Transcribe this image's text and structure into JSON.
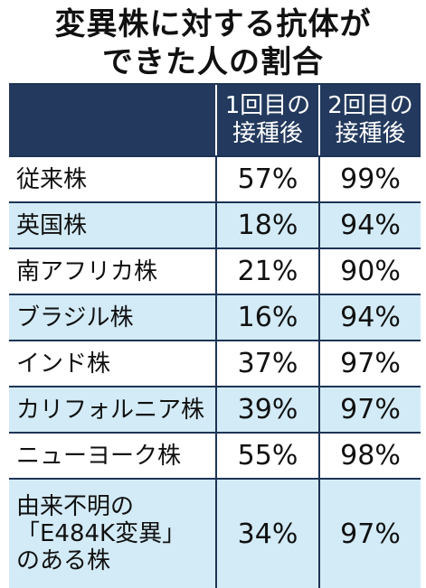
{
  "title_line1": "変異株に対する抗体が",
  "title_line2": "できた人の割合",
  "header": {
    "first_dose": "1回目の\n接種後",
    "second_dose": "2回目の\n接種後"
  },
  "colors": {
    "header_bg": "#23395d",
    "stripe_bg": "#d3ebf6",
    "border": "#1e3456"
  },
  "rows": [
    {
      "label": "従来株",
      "first": "57%",
      "second": "99%"
    },
    {
      "label": "英国株",
      "first": "18%",
      "second": "94%"
    },
    {
      "label": "南アフリカ株",
      "first": "21%",
      "second": "90%"
    },
    {
      "label": "ブラジル株",
      "first": "16%",
      "second": "94%"
    },
    {
      "label": "インド株",
      "first": "37%",
      "second": "97%"
    },
    {
      "label": "カリフォルニア株",
      "first": "39%",
      "second": "97%"
    },
    {
      "label": "ニューヨーク株",
      "first": "55%",
      "second": "98%"
    },
    {
      "label": "由来不明の\n「E484K変異」\nのある株",
      "first": "34%",
      "second": "97%"
    }
  ]
}
